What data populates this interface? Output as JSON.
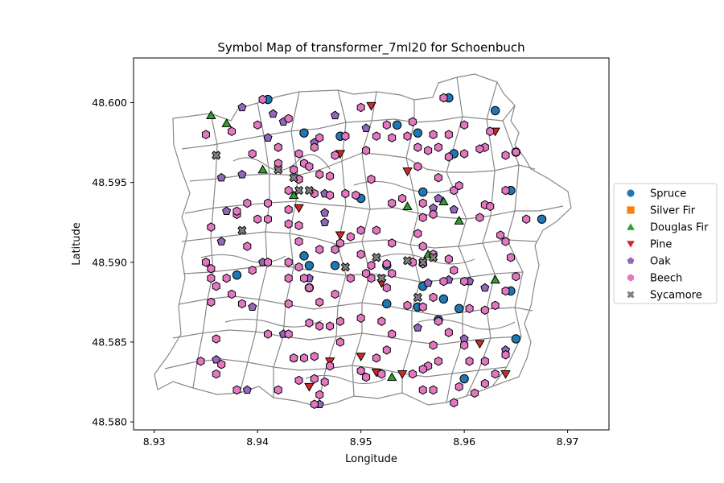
{
  "chart_data": {
    "type": "scatter",
    "title": "Symbol Map of transformer_7ml20 for Schoenbuch",
    "xlabel": "Longitude",
    "ylabel": "Latitude",
    "xlim": [
      8.928,
      8.974
    ],
    "ylim": [
      48.5795,
      48.6028
    ],
    "xticks": [
      8.93,
      8.94,
      8.95,
      8.96,
      8.97
    ],
    "yticks": [
      48.58,
      48.585,
      48.59,
      48.595,
      48.6
    ],
    "xtick_labels": [
      "8.93",
      "8.94",
      "8.95",
      "8.96",
      "8.97"
    ],
    "ytick_labels": [
      "48.580",
      "48.585",
      "48.590",
      "48.595",
      "48.600"
    ],
    "grid": false,
    "legend_position": "right-outside",
    "series": [
      {
        "name": "Spruce",
        "marker": "circle",
        "color": "#1f77b4",
        "points": [
          [
            8.9445,
            48.5981
          ],
          [
            8.941,
            48.6002
          ],
          [
            8.9535,
            48.5986
          ],
          [
            8.9555,
            48.5981
          ],
          [
            8.9585,
            48.6003
          ],
          [
            8.963,
            48.5995
          ],
          [
            8.959,
            48.5968
          ],
          [
            8.965,
            48.5969
          ],
          [
            8.9675,
            48.5927
          ],
          [
            8.9645,
            48.5945
          ],
          [
            8.956,
            48.5944
          ],
          [
            8.95,
            48.594
          ],
          [
            8.945,
            48.5898
          ],
          [
            8.945,
            48.5884
          ],
          [
            8.9525,
            48.5898
          ],
          [
            8.9525,
            48.5874
          ],
          [
            8.9555,
            48.5872
          ],
          [
            8.956,
            48.5885
          ],
          [
            8.958,
            48.5877
          ],
          [
            8.9595,
            48.5871
          ],
          [
            8.9645,
            48.5882
          ],
          [
            8.965,
            48.5852
          ],
          [
            8.96,
            48.5827
          ],
          [
            8.938,
            48.5892
          ],
          [
            8.9475,
            48.5898
          ],
          [
            8.948,
            48.5979
          ],
          [
            8.9575,
            48.5864
          ],
          [
            8.9445,
            48.5904
          ]
        ]
      },
      {
        "name": "Silver Fir",
        "marker": "square",
        "color": "#ff7f0e",
        "points": []
      },
      {
        "name": "Douglas Fir",
        "marker": "triangle-up",
        "color": "#2ca02c",
        "points": [
          [
            8.9355,
            48.5992
          ],
          [
            8.937,
            48.5987
          ],
          [
            8.9405,
            48.5958
          ],
          [
            8.9435,
            48.5942
          ],
          [
            8.9545,
            48.5935
          ],
          [
            8.958,
            48.5938
          ],
          [
            8.9595,
            48.5926
          ],
          [
            8.9565,
            48.5905
          ],
          [
            8.963,
            48.5889
          ],
          [
            8.953,
            48.5828
          ]
        ]
      },
      {
        "name": "Pine",
        "marker": "triangle-down",
        "color": "#d62728",
        "points": [
          [
            8.951,
            48.5998
          ],
          [
            8.963,
            48.5982
          ],
          [
            8.948,
            48.5968
          ],
          [
            8.9545,
            48.5957
          ],
          [
            8.944,
            48.5934
          ],
          [
            8.948,
            48.5917
          ],
          [
            8.952,
            48.5887
          ],
          [
            8.9615,
            48.5849
          ],
          [
            8.95,
            48.5841
          ],
          [
            8.947,
            48.5838
          ],
          [
            8.9515,
            48.5831
          ],
          [
            8.954,
            48.583
          ],
          [
            8.945,
            48.5822
          ],
          [
            8.964,
            48.583
          ]
        ]
      },
      {
        "name": "Oak",
        "marker": "pentagon",
        "color": "#9467bd",
        "points": [
          [
            8.9385,
            48.5997
          ],
          [
            8.9415,
            48.5993
          ],
          [
            8.9425,
            48.5988
          ],
          [
            8.9455,
            48.5975
          ],
          [
            8.9475,
            48.5992
          ],
          [
            8.941,
            48.5978
          ],
          [
            8.9385,
            48.5955
          ],
          [
            8.9365,
            48.5953
          ],
          [
            8.9465,
            48.5943
          ],
          [
            8.9465,
            48.5931
          ],
          [
            8.9465,
            48.5925
          ],
          [
            8.937,
            48.5932
          ],
          [
            8.9365,
            48.5913
          ],
          [
            8.9575,
            48.594
          ],
          [
            8.957,
            48.5934
          ],
          [
            8.959,
            48.5933
          ],
          [
            8.9505,
            48.5984
          ],
          [
            8.945,
            48.589
          ],
          [
            8.9405,
            48.59
          ],
          [
            8.9395,
            48.5872
          ],
          [
            8.9555,
            48.5859
          ],
          [
            8.96,
            48.5852
          ],
          [
            8.9425,
            48.5855
          ],
          [
            8.9435,
            48.584
          ],
          [
            8.936,
            48.5839
          ],
          [
            8.939,
            48.582
          ],
          [
            8.946,
            48.5811
          ],
          [
            8.9585,
            48.5889
          ],
          [
            8.9605,
            48.5888
          ],
          [
            8.962,
            48.5884
          ],
          [
            8.964,
            48.5845
          ],
          [
            8.9565,
            48.5887
          ]
        ]
      },
      {
        "name": "Beech",
        "marker": "hexagon",
        "color": "#e377c2",
        "points": [
          [
            8.935,
            48.598
          ],
          [
            8.9375,
            48.5982
          ],
          [
            8.9395,
            48.5968
          ],
          [
            8.94,
            48.5986
          ],
          [
            8.942,
            48.5972
          ],
          [
            8.944,
            48.5968
          ],
          [
            8.942,
            48.5962
          ],
          [
            8.9435,
            48.5958
          ],
          [
            8.9445,
            48.5962
          ],
          [
            8.9455,
            48.5972
          ],
          [
            8.945,
            48.596
          ],
          [
            8.943,
            48.599
          ],
          [
            8.9405,
            48.6002
          ],
          [
            8.946,
            48.5978
          ],
          [
            8.95,
            48.5997
          ],
          [
            8.9525,
            48.5986
          ],
          [
            8.9505,
            48.597
          ],
          [
            8.953,
            48.5978
          ],
          [
            8.9545,
            48.5979
          ],
          [
            8.9555,
            48.596
          ],
          [
            8.955,
            48.5988
          ],
          [
            8.9555,
            48.5972
          ],
          [
            8.9565,
            48.597
          ],
          [
            8.957,
            48.598
          ],
          [
            8.9575,
            48.5972
          ],
          [
            8.958,
            48.6003
          ],
          [
            8.9585,
            48.598
          ],
          [
            8.96,
            48.5986
          ],
          [
            8.962,
            48.5972
          ],
          [
            8.9625,
            48.5982
          ],
          [
            8.964,
            48.5967
          ],
          [
            8.964,
            48.5945
          ],
          [
            8.965,
            48.5969
          ],
          [
            8.966,
            48.5927
          ],
          [
            8.962,
            48.5936
          ],
          [
            8.9615,
            48.5928
          ],
          [
            8.959,
            48.5945
          ],
          [
            8.9575,
            48.5953
          ],
          [
            8.956,
            48.5937
          ],
          [
            8.954,
            48.594
          ],
          [
            8.953,
            48.5937
          ],
          [
            8.957,
            48.593
          ],
          [
            8.951,
            48.5952
          ],
          [
            8.947,
            48.5942
          ],
          [
            8.9485,
            48.5943
          ],
          [
            8.9495,
            48.5942
          ],
          [
            8.947,
            48.5954
          ],
          [
            8.946,
            48.5955
          ],
          [
            8.944,
            48.5952
          ],
          [
            8.943,
            48.5945
          ],
          [
            8.941,
            48.5937
          ],
          [
            8.939,
            48.5937
          ],
          [
            8.941,
            48.5927
          ],
          [
            8.943,
            48.5924
          ],
          [
            8.944,
            48.5923
          ],
          [
            8.944,
            48.5913
          ],
          [
            8.946,
            48.5908
          ],
          [
            8.9475,
            48.5908
          ],
          [
            8.948,
            48.5912
          ],
          [
            8.949,
            48.5916
          ],
          [
            8.95,
            48.592
          ],
          [
            8.9515,
            48.592
          ],
          [
            8.953,
            48.5912
          ],
          [
            8.95,
            48.5905
          ],
          [
            8.951,
            48.5898
          ],
          [
            8.9525,
            48.5899
          ],
          [
            8.953,
            48.5893
          ],
          [
            8.951,
            48.589
          ],
          [
            8.956,
            48.5928
          ],
          [
            8.9555,
            48.5918
          ],
          [
            8.956,
            48.591
          ],
          [
            8.955,
            48.59
          ],
          [
            8.956,
            48.5899
          ],
          [
            8.957,
            48.5905
          ],
          [
            8.9585,
            48.5902
          ],
          [
            8.959,
            48.5895
          ],
          [
            8.958,
            48.5888
          ],
          [
            8.96,
            48.5888
          ],
          [
            8.9605,
            48.5871
          ],
          [
            8.962,
            48.587
          ],
          [
            8.963,
            48.5873
          ],
          [
            8.964,
            48.5882
          ],
          [
            8.9645,
            48.5903
          ],
          [
            8.965,
            48.5891
          ],
          [
            8.964,
            48.5913
          ],
          [
            8.957,
            48.5878
          ],
          [
            8.956,
            48.5872
          ],
          [
            8.9545,
            48.5873
          ],
          [
            8.9525,
            48.5884
          ],
          [
            8.952,
            48.5863
          ],
          [
            8.95,
            48.5865
          ],
          [
            8.953,
            48.5855
          ],
          [
            8.9525,
            48.5845
          ],
          [
            8.9515,
            48.584
          ],
          [
            8.95,
            48.5832
          ],
          [
            8.9505,
            48.5828
          ],
          [
            8.952,
            48.583
          ],
          [
            8.955,
            48.583
          ],
          [
            8.9565,
            48.5835
          ],
          [
            8.9575,
            48.5838
          ],
          [
            8.957,
            48.5848
          ],
          [
            8.9575,
            48.5863
          ],
          [
            8.9585,
            48.5856
          ],
          [
            8.96,
            48.5848
          ],
          [
            8.9605,
            48.5838
          ],
          [
            8.962,
            48.5838
          ],
          [
            8.964,
            48.5842
          ],
          [
            8.963,
            48.583
          ],
          [
            8.962,
            48.5824
          ],
          [
            8.961,
            48.5818
          ],
          [
            8.9595,
            48.5822
          ],
          [
            8.959,
            48.5812
          ],
          [
            8.957,
            48.582
          ],
          [
            8.956,
            48.582
          ],
          [
            8.956,
            48.5833
          ],
          [
            8.948,
            48.585
          ],
          [
            8.947,
            48.586
          ],
          [
            8.946,
            48.586
          ],
          [
            8.945,
            48.5862
          ],
          [
            8.948,
            48.5863
          ],
          [
            8.947,
            48.5835
          ],
          [
            8.9465,
            48.5825
          ],
          [
            8.9455,
            48.5827
          ],
          [
            8.946,
            48.5817
          ],
          [
            8.9455,
            48.5811
          ],
          [
            8.944,
            48.5826
          ],
          [
            8.9435,
            48.584
          ],
          [
            8.9445,
            48.584
          ],
          [
            8.9455,
            48.5841
          ],
          [
            8.943,
            48.5855
          ],
          [
            8.941,
            48.5855
          ],
          [
            8.942,
            48.582
          ],
          [
            8.938,
            48.582
          ],
          [
            8.936,
            48.583
          ],
          [
            8.9345,
            48.5838
          ],
          [
            8.9365,
            48.5836
          ],
          [
            8.936,
            48.5852
          ],
          [
            8.9355,
            48.5875
          ],
          [
            8.936,
            48.5885
          ],
          [
            8.9375,
            48.588
          ],
          [
            8.9385,
            48.5874
          ],
          [
            8.9355,
            48.589
          ],
          [
            8.935,
            48.59
          ],
          [
            8.9355,
            48.5896
          ],
          [
            8.937,
            48.589
          ],
          [
            8.9395,
            48.5895
          ],
          [
            8.941,
            48.59
          ],
          [
            8.943,
            48.59
          ],
          [
            8.943,
            48.589
          ],
          [
            8.944,
            48.5897
          ],
          [
            8.9445,
            48.589
          ],
          [
            8.943,
            48.5874
          ],
          [
            8.946,
            48.5875
          ],
          [
            8.945,
            48.5884
          ],
          [
            8.9475,
            48.588
          ],
          [
            8.949,
            48.589
          ],
          [
            8.9505,
            48.5893
          ],
          [
            8.938,
            48.593
          ],
          [
            8.939,
            48.591
          ],
          [
            8.94,
            48.5927
          ],
          [
            8.938,
            48.5932
          ],
          [
            8.9355,
            48.5922
          ],
          [
            8.943,
            48.5933
          ],
          [
            8.944,
            48.5952
          ],
          [
            8.9455,
            48.5943
          ],
          [
            8.9475,
            48.5967
          ],
          [
            8.9485,
            48.5979
          ],
          [
            8.9515,
            48.5979
          ],
          [
            8.9585,
            48.5966
          ],
          [
            8.9595,
            48.5948
          ],
          [
            8.96,
            48.5968
          ],
          [
            8.9615,
            48.5971
          ],
          [
            8.9625,
            48.5935
          ],
          [
            8.9635,
            48.5917
          ]
        ]
      },
      {
        "name": "Sycamore",
        "marker": "x",
        "color": "#7f7f7f",
        "points": [
          [
            8.936,
            48.5967
          ],
          [
            8.9435,
            48.5953
          ],
          [
            8.944,
            48.5945
          ],
          [
            8.9385,
            48.592
          ],
          [
            8.9515,
            48.5903
          ],
          [
            8.952,
            48.589
          ],
          [
            8.9485,
            48.5897
          ],
          [
            8.9545,
            48.5901
          ],
          [
            8.956,
            48.59
          ],
          [
            8.957,
            48.5903
          ],
          [
            8.9555,
            48.5878
          ],
          [
            8.942,
            48.5958
          ],
          [
            8.945,
            48.5945
          ]
        ]
      }
    ]
  }
}
